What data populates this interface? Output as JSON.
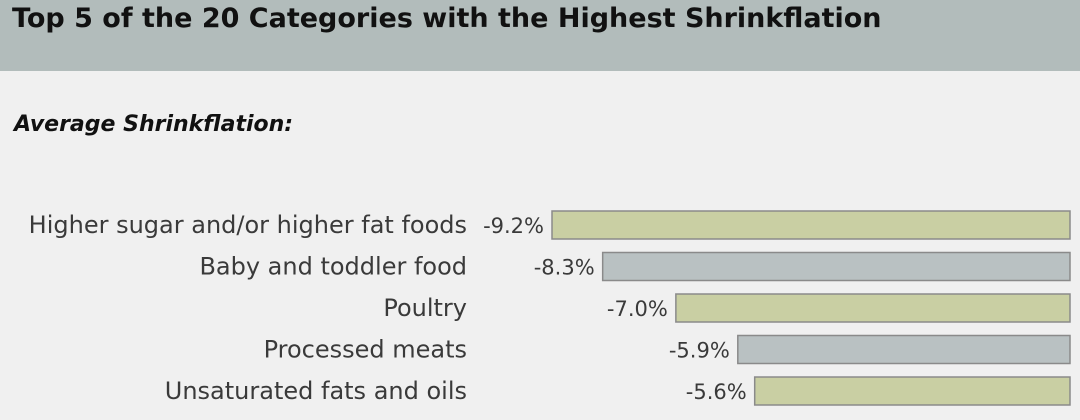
{
  "header": {
    "title": "Top 5 of the 20 Categories with the Highest Shrinkflation"
  },
  "subtitle": "Average Shrinkflation:",
  "colors": {
    "header_bg": "#b2bcbb",
    "bar_olive": "#c9cfa3",
    "bar_grey": "#b9c1c2",
    "bar_border": "#8a8a8a"
  },
  "chart_data": {
    "type": "bar",
    "orientation": "horizontal",
    "categories": [
      "Higher sugar and/or higher fat foods",
      "Baby and toddler food",
      "Poultry",
      "Processed meats",
      "Unsaturated fats and oils"
    ],
    "values": [
      -9.2,
      -8.3,
      -7.0,
      -5.9,
      -5.6
    ],
    "value_labels": [
      "-9.2%",
      "-8.3%",
      "-7.0%",
      "-5.9%",
      "-5.6%"
    ],
    "bar_colors": [
      "#c9cfa3",
      "#b9c1c2",
      "#c9cfa3",
      "#b9c1c2",
      "#c9cfa3"
    ],
    "title": "Top 5 of the 20 Categories with the Highest Shrinkflation",
    "subtitle": "Average Shrinkflation:",
    "xlabel": "",
    "ylabel": "",
    "grid": false,
    "legend": "none"
  }
}
